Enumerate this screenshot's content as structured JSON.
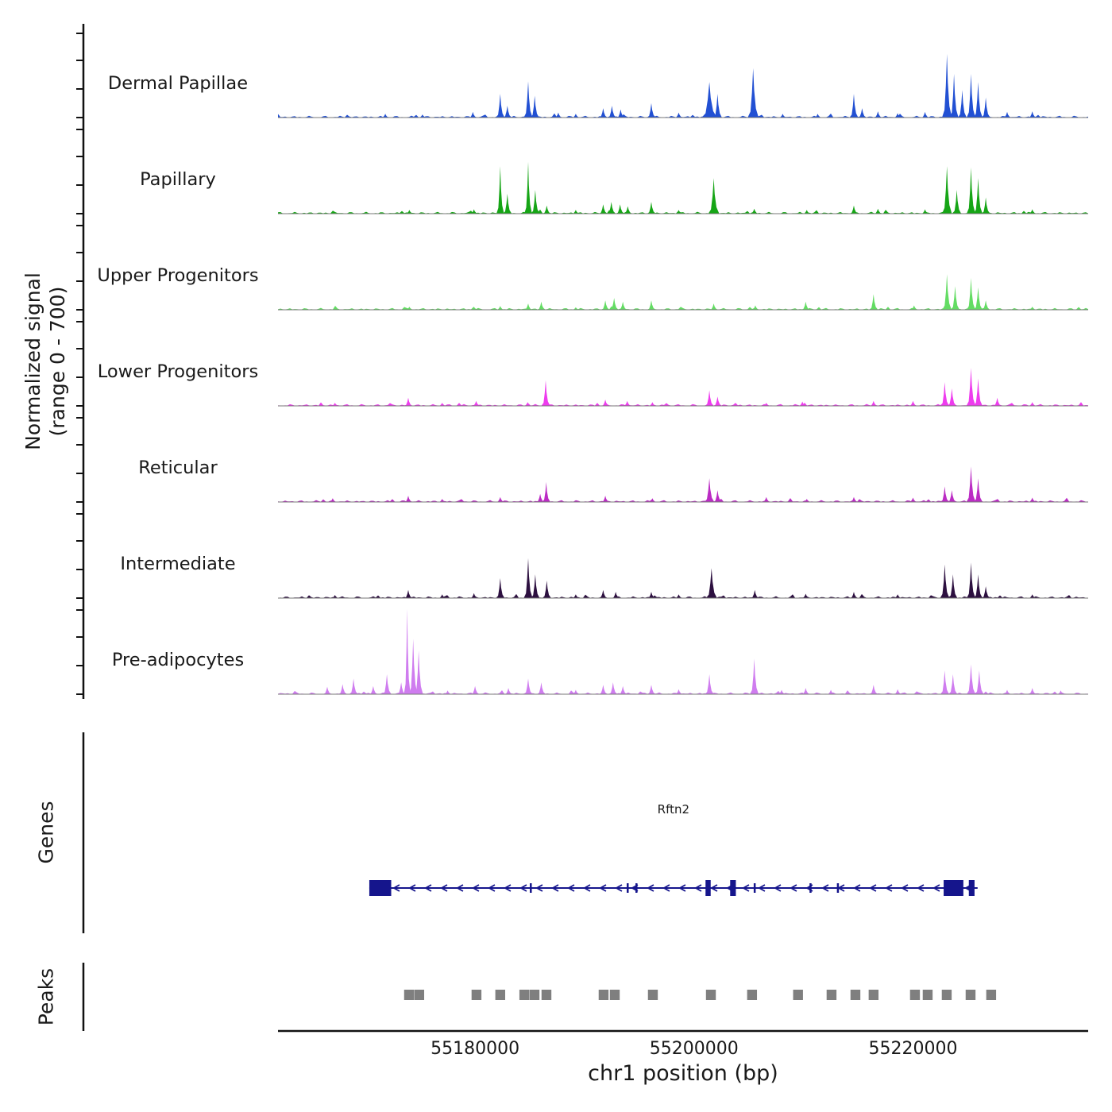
{
  "figure": {
    "ylabel_line1": "Normalized signal",
    "ylabel_line2": "(range 0 - 700)"
  },
  "chart_data": {
    "type": "area",
    "title": "",
    "xlabel": "chr1 position (bp)",
    "ylabel": "Normalized signal (range 0 - 700)",
    "x_range_bp": [
      55162000,
      55236000
    ],
    "x_ticks": [
      55180000,
      55200000,
      55220000
    ],
    "y_range_per_track": [
      0,
      700
    ],
    "grid": false,
    "tracks": [
      {
        "label": "Dermal Papillae",
        "color": "#2250d3",
        "peaks": [
          [
            55182300,
            190
          ],
          [
            55182950,
            95
          ],
          [
            55184850,
            290
          ],
          [
            55185450,
            175
          ],
          [
            55191700,
            75
          ],
          [
            55192500,
            95
          ],
          [
            55193300,
            65
          ],
          [
            55196100,
            115
          ],
          [
            55201400,
            285,
            700
          ],
          [
            55202150,
            190
          ],
          [
            55205400,
            395,
            500
          ],
          [
            55214600,
            190
          ],
          [
            55215350,
            75
          ],
          [
            55216800,
            50
          ],
          [
            55223100,
            510,
            450
          ],
          [
            55223750,
            350
          ],
          [
            55224500,
            220
          ],
          [
            55225300,
            350
          ],
          [
            55225950,
            285
          ],
          [
            55226650,
            160
          ],
          [
            55230900,
            50
          ],
          [
            55179800,
            45
          ],
          [
            55187600,
            40
          ],
          [
            55189200,
            30
          ],
          [
            55198600,
            40
          ],
          [
            55208100,
            30
          ],
          [
            55211300,
            30
          ],
          [
            55218600,
            35
          ],
          [
            55221100,
            45
          ],
          [
            55228600,
            45
          ],
          [
            55171800,
            30
          ],
          [
            55175200,
            25
          ]
        ]
      },
      {
        "label": "Papillary",
        "color": "#16a516",
        "peaks": [
          [
            55182300,
            380,
            350
          ],
          [
            55182950,
            160
          ],
          [
            55184850,
            415,
            350
          ],
          [
            55185500,
            190
          ],
          [
            55186550,
            65
          ],
          [
            55191700,
            75
          ],
          [
            55192450,
            95
          ],
          [
            55193250,
            75
          ],
          [
            55193950,
            60
          ],
          [
            55196100,
            95
          ],
          [
            55201800,
            285,
            500
          ],
          [
            55214600,
            65
          ],
          [
            55216800,
            40
          ],
          [
            55223100,
            380,
            450
          ],
          [
            55224000,
            190
          ],
          [
            55225300,
            370
          ],
          [
            55225950,
            285
          ],
          [
            55226650,
            130
          ],
          [
            55174000,
            30
          ],
          [
            55179900,
            35
          ],
          [
            55189200,
            30
          ],
          [
            55198600,
            30
          ],
          [
            55205500,
            40
          ],
          [
            55210300,
            30
          ],
          [
            55221100,
            35
          ],
          [
            55230900,
            35
          ]
        ]
      },
      {
        "label": "Upper Progenitors",
        "color": "#63dc63",
        "peaks": [
          [
            55182300,
            30
          ],
          [
            55184850,
            50
          ],
          [
            55186050,
            65
          ],
          [
            55191900,
            75
          ],
          [
            55192700,
            95
          ],
          [
            55193500,
            65
          ],
          [
            55196100,
            75
          ],
          [
            55201800,
            50
          ],
          [
            55205600,
            35
          ],
          [
            55210200,
            65
          ],
          [
            55216400,
            125
          ],
          [
            55223100,
            285,
            420
          ],
          [
            55223850,
            190
          ],
          [
            55225300,
            255
          ],
          [
            55225950,
            180
          ],
          [
            55226650,
            75
          ],
          [
            55174000,
            25
          ],
          [
            55179900,
            25
          ],
          [
            55189200,
            20
          ],
          [
            55220100,
            35
          ],
          [
            55230900,
            25
          ]
        ]
      },
      {
        "label": "Lower Progenitors",
        "color": "#ee3cee",
        "peaks": [
          [
            55173900,
            65
          ],
          [
            55180100,
            40
          ],
          [
            55186450,
            205,
            400
          ],
          [
            55191900,
            50
          ],
          [
            55193900,
            40
          ],
          [
            55201400,
            125
          ],
          [
            55202150,
            75
          ],
          [
            55209900,
            35
          ],
          [
            55216400,
            40
          ],
          [
            55220000,
            40
          ],
          [
            55222900,
            190
          ],
          [
            55223550,
            140
          ],
          [
            55225300,
            305,
            420
          ],
          [
            55225950,
            220
          ],
          [
            55227700,
            65
          ],
          [
            55167200,
            25
          ],
          [
            55177000,
            25
          ],
          [
            55184800,
            30
          ],
          [
            55196200,
            30
          ],
          [
            55206600,
            25
          ],
          [
            55230900,
            30
          ]
        ]
      },
      {
        "label": "Reticular",
        "color": "#bb2cc4",
        "peaks": [
          [
            55167000,
            30
          ],
          [
            55173900,
            50
          ],
          [
            55182300,
            40
          ],
          [
            55185950,
            65
          ],
          [
            55186500,
            160,
            380
          ],
          [
            55191900,
            50
          ],
          [
            55201400,
            190,
            450
          ],
          [
            55202150,
            95
          ],
          [
            55206600,
            40
          ],
          [
            55214600,
            40
          ],
          [
            55220000,
            35
          ],
          [
            55222900,
            125
          ],
          [
            55223550,
            95
          ],
          [
            55225300,
            285,
            420
          ],
          [
            55225950,
            190
          ],
          [
            55230900,
            35
          ],
          [
            55177000,
            25
          ],
          [
            55196200,
            30
          ],
          [
            55210300,
            25
          ]
        ]
      },
      {
        "label": "Intermediate",
        "color": "#2d1040",
        "peaks": [
          [
            55173900,
            65
          ],
          [
            55182300,
            160
          ],
          [
            55184850,
            320,
            400
          ],
          [
            55185500,
            190
          ],
          [
            55186550,
            140
          ],
          [
            55191700,
            65
          ],
          [
            55192850,
            50
          ],
          [
            55196100,
            50
          ],
          [
            55201600,
            240,
            500
          ],
          [
            55205550,
            65
          ],
          [
            55210200,
            35
          ],
          [
            55214600,
            50
          ],
          [
            55222900,
            270,
            420
          ],
          [
            55223650,
            190
          ],
          [
            55225300,
            285
          ],
          [
            55225950,
            190
          ],
          [
            55226650,
            95
          ],
          [
            55167200,
            25
          ],
          [
            55177000,
            30
          ],
          [
            55179900,
            40
          ],
          [
            55189200,
            30
          ],
          [
            55198600,
            30
          ],
          [
            55218600,
            30
          ],
          [
            55230900,
            30
          ]
        ]
      },
      {
        "label": "Pre-adipocytes",
        "color": "#cf7cef",
        "peaks": [
          [
            55168900,
            125
          ],
          [
            55170700,
            65
          ],
          [
            55171950,
            160
          ],
          [
            55173250,
            95
          ],
          [
            55173800,
            685,
            300
          ],
          [
            55174350,
            445
          ],
          [
            55174850,
            350
          ],
          [
            55180000,
            65
          ],
          [
            55183050,
            50
          ],
          [
            55184850,
            125
          ],
          [
            55186050,
            95
          ],
          [
            55191700,
            75
          ],
          [
            55192600,
            95
          ],
          [
            55193500,
            65
          ],
          [
            55196100,
            75
          ],
          [
            55201400,
            160
          ],
          [
            55205500,
            285,
            400
          ],
          [
            55210200,
            50
          ],
          [
            55216400,
            75
          ],
          [
            55222900,
            190
          ],
          [
            55223650,
            160
          ],
          [
            55225300,
            240
          ],
          [
            55226050,
            190
          ],
          [
            55230900,
            50
          ],
          [
            55166500,
            60
          ],
          [
            55167900,
            80
          ],
          [
            55177500,
            30
          ],
          [
            55189200,
            35
          ],
          [
            55198600,
            40
          ],
          [
            55208000,
            35
          ],
          [
            55212500,
            35
          ],
          [
            55218600,
            40
          ],
          [
            55228600,
            35
          ],
          [
            55233500,
            30
          ]
        ]
      }
    ],
    "gene_track": {
      "label": "Genes",
      "color": "#15158c",
      "genes": [
        {
          "name": "Rftn2",
          "start": 55170340,
          "end": 55225900,
          "strand": "-",
          "exons": [
            [
              55170340,
              55172340,
              "tall"
            ],
            [
              55185000,
              55185180,
              "small"
            ],
            [
              55193850,
              55194030,
              "small"
            ],
            [
              55194650,
              55194830,
              "small"
            ],
            [
              55201050,
              55201520,
              "tall"
            ],
            [
              55203300,
              55203820,
              "tall"
            ],
            [
              55205450,
              55205630,
              "small"
            ],
            [
              55210550,
              55210730,
              "small"
            ],
            [
              55213050,
              55213230,
              "small"
            ],
            [
              55222800,
              55224600,
              "tall"
            ],
            [
              55225100,
              55225620,
              "tall"
            ]
          ]
        }
      ]
    },
    "peak_track": {
      "label": "Peaks",
      "color": "#7f7f7f",
      "box_width_bp": 900,
      "centers": [
        55173970,
        55174900,
        55180130,
        55182300,
        55184500,
        55185430,
        55186520,
        55191740,
        55192760,
        55196240,
        55201540,
        55205300,
        55209500,
        55212560,
        55214740,
        55216400,
        55220180,
        55221340,
        55223080,
        55225260,
        55227140
      ]
    }
  }
}
